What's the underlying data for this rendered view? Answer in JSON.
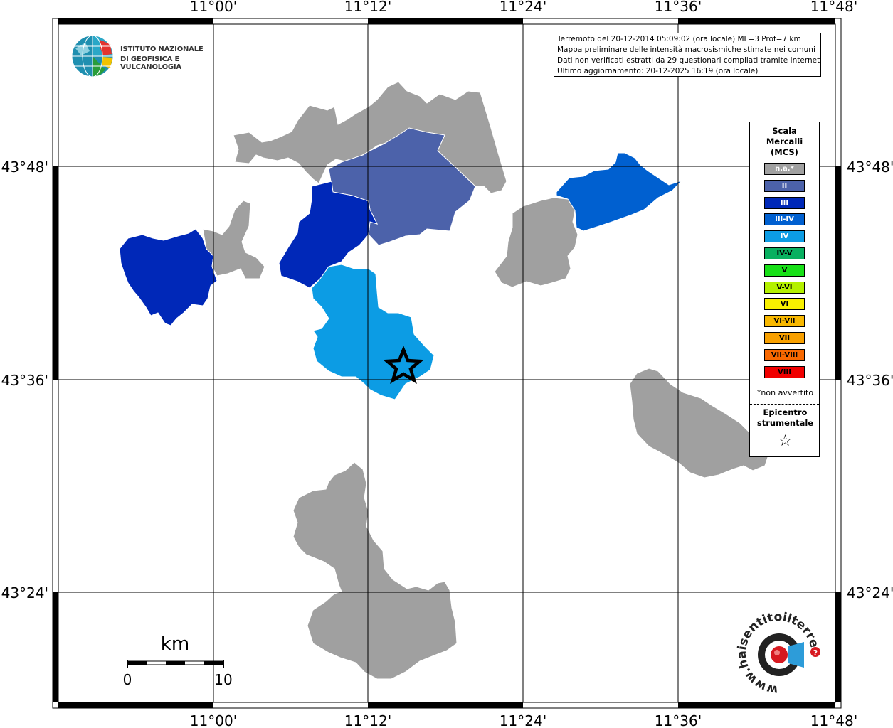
{
  "info": {
    "lines": [
      "Terremoto del 20-12-2014 05:09:02 (ora locale) ML=3 Prof=7 km",
      "Mappa preliminare delle intensità macrosismiche stimate nei comuni",
      "Dati non verificati estratti da 29 questionari compilati tramite Internet.",
      "Ultimo aggiornamento: 20-12-2025 16:19 (ora locale)"
    ]
  },
  "grid": {
    "lon_labels": [
      "11°00'",
      "11°12'",
      "11°24'",
      "11°36'",
      "11°48'"
    ],
    "lat_labels": [
      "43°48'",
      "43°36'",
      "43°24'"
    ]
  },
  "legend": {
    "title_lines": [
      "Scala",
      "Mercalli",
      "(MCS)"
    ],
    "items": [
      {
        "label": "n.a.*",
        "color": "#a0a0a0"
      },
      {
        "label": "II",
        "color": "#4c62aa"
      },
      {
        "label": "III",
        "color": "#0028b8"
      },
      {
        "label": "III-IV",
        "color": "#0060d0"
      },
      {
        "label": "IV",
        "color": "#0c9ce4"
      },
      {
        "label": "IV-V",
        "color": "#08b060"
      },
      {
        "label": "V",
        "color": "#18e018"
      },
      {
        "label": "V-VI",
        "color": "#b4f000"
      },
      {
        "label": "VI",
        "color": "#f8f000"
      },
      {
        "label": "VI-VII",
        "color": "#f8b800"
      },
      {
        "label": "VII",
        "color": "#f8a000"
      },
      {
        "label": "VII-VIII",
        "color": "#f86800"
      },
      {
        "label": "VIII",
        "color": "#f00000"
      }
    ],
    "note": "*non avvertito",
    "epicenter_lines": [
      "Epicentro",
      "strumentale"
    ],
    "star_symbol": "☆"
  },
  "scale": {
    "unit": "km",
    "min": "0",
    "max": "10"
  },
  "logo_left": {
    "line1": "ISTITUTO NAZIONALE",
    "line2": "DI GEOFISICA E VULCANOLOGIA"
  },
  "logo_right": {
    "text": "www.haisentitoilterremoto.it"
  },
  "regions": [
    {
      "id": "north-gray",
      "intensity": "n.a.*",
      "color": "#a0a0a0"
    },
    {
      "id": "north-center",
      "intensity": "II",
      "color": "#4c62aa"
    },
    {
      "id": "west-a",
      "intensity": "III",
      "color": "#0028b8"
    },
    {
      "id": "west-b",
      "intensity": "III",
      "color": "#0028b8"
    },
    {
      "id": "west-gray",
      "intensity": "n.a.*",
      "color": "#a0a0a0"
    },
    {
      "id": "east",
      "intensity": "III-IV",
      "color": "#0060d0"
    },
    {
      "id": "east-gray",
      "intensity": "n.a.*",
      "color": "#a0a0a0"
    },
    {
      "id": "center-epi",
      "intensity": "IV",
      "color": "#0c9ce4"
    },
    {
      "id": "far-east-gray",
      "intensity": "n.a.*",
      "color": "#a0a0a0"
    },
    {
      "id": "south-gray",
      "intensity": "n.a.*",
      "color": "#a0a0a0"
    }
  ]
}
